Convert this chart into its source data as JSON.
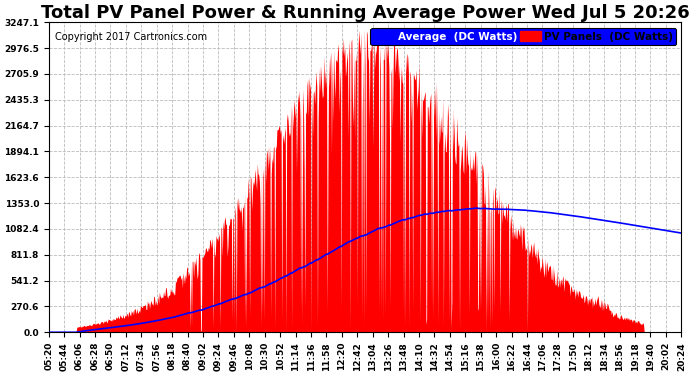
{
  "title": "Total PV Panel Power & Running Average Power Wed Jul 5 20:26",
  "copyright": "Copyright 2017 Cartronics.com",
  "legend_avg": "Average  (DC Watts)",
  "legend_pv": "PV Panels  (DC Watts)",
  "yticks": [
    0.0,
    270.6,
    541.2,
    811.8,
    1082.4,
    1353.0,
    1623.6,
    1894.1,
    2164.7,
    2435.3,
    2705.9,
    2976.5,
    3247.1
  ],
  "ymax": 3247.1,
  "bg_color": "#FFFFFF",
  "plot_bg_color": "#FFFFFF",
  "pv_color": "#FF0000",
  "avg_color": "#0000FF",
  "grid_color": "#BBBBBB",
  "xtick_labels": [
    "05:20",
    "05:44",
    "06:06",
    "06:28",
    "06:50",
    "07:12",
    "07:34",
    "07:56",
    "08:18",
    "08:40",
    "09:02",
    "09:24",
    "09:46",
    "10:08",
    "10:30",
    "10:52",
    "11:14",
    "11:36",
    "11:58",
    "12:20",
    "12:42",
    "13:04",
    "13:26",
    "13:48",
    "14:10",
    "14:32",
    "14:54",
    "15:16",
    "15:38",
    "16:00",
    "16:22",
    "16:44",
    "17:06",
    "17:28",
    "17:50",
    "18:12",
    "18:34",
    "18:56",
    "19:18",
    "19:40",
    "20:02",
    "20:24"
  ],
  "title_fontsize": 13,
  "copyright_fontsize": 7,
  "tick_fontsize": 6.5,
  "legend_fontsize": 7.5
}
